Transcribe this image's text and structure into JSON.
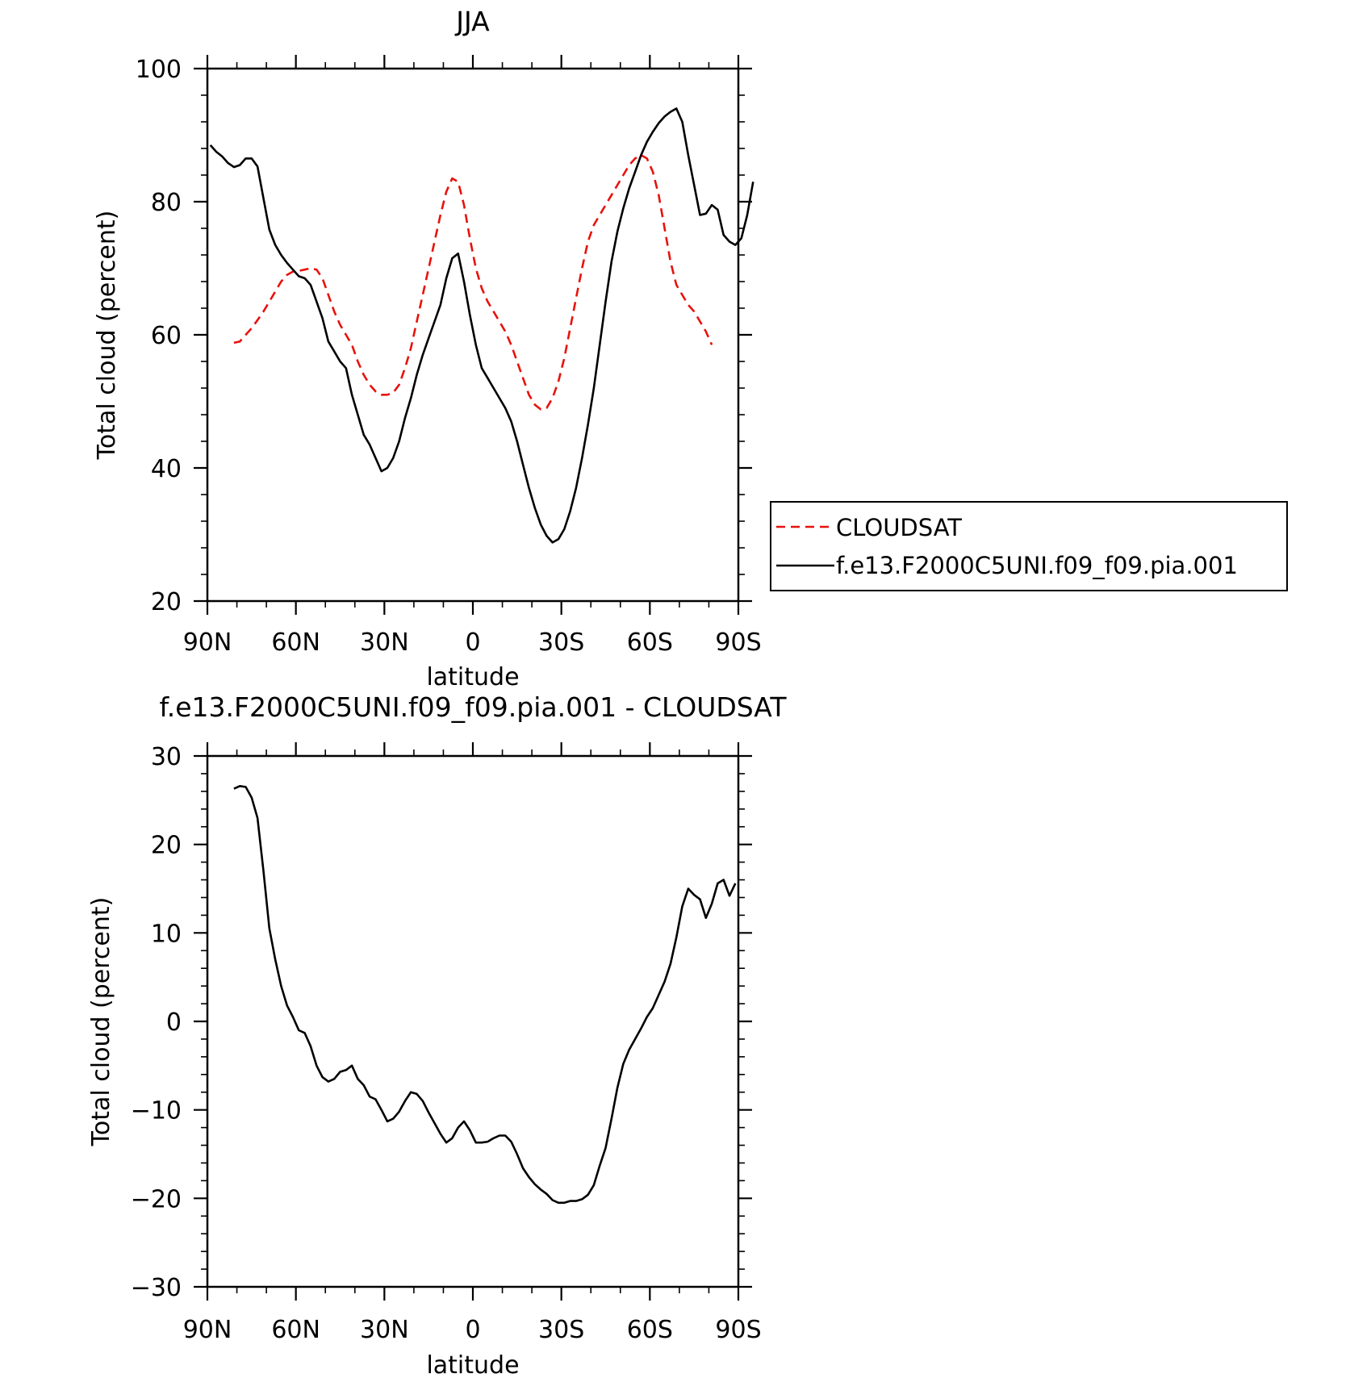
{
  "chart_data": [
    {
      "type": "line",
      "title": "JJA",
      "xlabel": "latitude",
      "ylabel": "Total cloud (percent)",
      "xlim": [
        90,
        -90
      ],
      "ylim": [
        20,
        100
      ],
      "x_ticks": [
        90,
        60,
        30,
        0,
        -30,
        -60,
        -90
      ],
      "x_tick_labels": [
        "90N",
        "60N",
        "30N",
        "0",
        "30S",
        "60S",
        "90S"
      ],
      "y_ticks": [
        20,
        40,
        60,
        80,
        100
      ],
      "y_tick_labels": [
        "20",
        "40",
        "60",
        "80",
        "100"
      ],
      "legend_position": "right",
      "series": [
        {
          "name": "CLOUDSAT",
          "color": "#e8120c",
          "style": "dashed",
          "points": [
            [
              81,
              58.8
            ],
            [
              79,
              59.0
            ],
            [
              77,
              60.0
            ],
            [
              75,
              61.0
            ],
            [
              73,
              62.2
            ],
            [
              71,
              63.5
            ],
            [
              69,
              65.0
            ],
            [
              67,
              66.5
            ],
            [
              65,
              68.0
            ],
            [
              63,
              69.0
            ],
            [
              61,
              69.5
            ],
            [
              59,
              69.6
            ],
            [
              57,
              69.8
            ],
            [
              55,
              70.0
            ],
            [
              53,
              69.8
            ],
            [
              51,
              68.5
            ],
            [
              49,
              66.0
            ],
            [
              47,
              63.5
            ],
            [
              45,
              61.5
            ],
            [
              43,
              60.0
            ],
            [
              41,
              58.5
            ],
            [
              39,
              56.0
            ],
            [
              37,
              54.0
            ],
            [
              35,
              52.5
            ],
            [
              33,
              51.5
            ],
            [
              31,
              51.0
            ],
            [
              29,
              51.0
            ],
            [
              27,
              51.3
            ],
            [
              25,
              52.5
            ],
            [
              23,
              55.0
            ],
            [
              21,
              58.0
            ],
            [
              19,
              62.0
            ],
            [
              17,
              66.0
            ],
            [
              15,
              70.0
            ],
            [
              13,
              74.0
            ],
            [
              11,
              78.0
            ],
            [
              9,
              81.5
            ],
            [
              7,
              83.5
            ],
            [
              5,
              83.0
            ],
            [
              3,
              79.5
            ],
            [
              1,
              74.5
            ],
            [
              -1,
              70.0
            ],
            [
              -3,
              67.0
            ],
            [
              -5,
              65.0
            ],
            [
              -7,
              63.5
            ],
            [
              -9,
              62.0
            ],
            [
              -11,
              60.5
            ],
            [
              -13,
              58.5
            ],
            [
              -15,
              56.0
            ],
            [
              -17,
              53.5
            ],
            [
              -19,
              51.0
            ],
            [
              -21,
              49.5
            ],
            [
              -23,
              48.8
            ],
            [
              -25,
              49.0
            ],
            [
              -27,
              50.5
            ],
            [
              -29,
              53.0
            ],
            [
              -31,
              56.5
            ],
            [
              -33,
              61.0
            ],
            [
              -35,
              65.5
            ],
            [
              -37,
              70.0
            ],
            [
              -39,
              74.0
            ],
            [
              -41,
              76.5
            ],
            [
              -43,
              78.0
            ],
            [
              -45,
              79.5
            ],
            [
              -47,
              81.0
            ],
            [
              -49,
              82.5
            ],
            [
              -51,
              84.0
            ],
            [
              -53,
              85.5
            ],
            [
              -55,
              86.5
            ],
            [
              -57,
              87.0
            ],
            [
              -59,
              86.5
            ],
            [
              -61,
              84.5
            ],
            [
              -63,
              81.0
            ],
            [
              -65,
              76.0
            ],
            [
              -67,
              71.0
            ],
            [
              -69,
              67.5
            ],
            [
              -71,
              66.0
            ],
            [
              -73,
              64.5
            ],
            [
              -75,
              63.5
            ],
            [
              -77,
              62.0
            ],
            [
              -79,
              60.5
            ],
            [
              -81,
              58.5
            ]
          ]
        },
        {
          "name": "f.e13.F2000C5UNI.f09_f09.pia.001",
          "color": "#000000",
          "style": "solid",
          "points": [
            [
              89,
              88.5
            ],
            [
              87,
              87.5
            ],
            [
              85,
              86.8
            ],
            [
              83,
              85.8
            ],
            [
              81,
              85.2
            ],
            [
              79,
              85.5
            ],
            [
              77,
              86.5
            ],
            [
              75,
              86.5
            ],
            [
              73,
              85.3
            ],
            [
              71,
              80.5
            ],
            [
              69,
              75.8
            ],
            [
              67,
              73.5
            ],
            [
              65,
              72.0
            ],
            [
              63,
              70.8
            ],
            [
              61,
              69.8
            ],
            [
              59,
              68.8
            ],
            [
              57,
              68.5
            ],
            [
              55,
              67.5
            ],
            [
              53,
              65.0
            ],
            [
              51,
              62.5
            ],
            [
              49,
              59.0
            ],
            [
              47,
              57.5
            ],
            [
              45,
              56.0
            ],
            [
              43,
              55.0
            ],
            [
              41,
              51.0
            ],
            [
              39,
              48.0
            ],
            [
              37,
              45.0
            ],
            [
              35,
              43.5
            ],
            [
              33,
              41.5
            ],
            [
              31,
              39.5
            ],
            [
              29,
              40.0
            ],
            [
              27,
              41.5
            ],
            [
              25,
              44.0
            ],
            [
              23,
              47.5
            ],
            [
              21,
              50.5
            ],
            [
              19,
              54.0
            ],
            [
              17,
              57.0
            ],
            [
              15,
              59.5
            ],
            [
              13,
              62.0
            ],
            [
              11,
              64.5
            ],
            [
              9,
              68.5
            ],
            [
              7,
              71.5
            ],
            [
              5,
              72.2
            ],
            [
              3,
              68.0
            ],
            [
              1,
              63.0
            ],
            [
              -1,
              58.5
            ],
            [
              -3,
              55.0
            ],
            [
              -5,
              53.5
            ],
            [
              -7,
              52.0
            ],
            [
              -9,
              50.5
            ],
            [
              -11,
              49.0
            ],
            [
              -13,
              47.0
            ],
            [
              -15,
              44.0
            ],
            [
              -17,
              40.5
            ],
            [
              -19,
              37.0
            ],
            [
              -21,
              34.0
            ],
            [
              -23,
              31.5
            ],
            [
              -25,
              29.8
            ],
            [
              -27,
              28.8
            ],
            [
              -29,
              29.3
            ],
            [
              -31,
              30.8
            ],
            [
              -33,
              33.5
            ],
            [
              -35,
              37.0
            ],
            [
              -37,
              41.5
            ],
            [
              -39,
              46.5
            ],
            [
              -41,
              52.0
            ],
            [
              -43,
              58.5
            ],
            [
              -45,
              65.0
            ],
            [
              -47,
              71.0
            ],
            [
              -49,
              75.5
            ],
            [
              -51,
              79.0
            ],
            [
              -53,
              82.0
            ],
            [
              -55,
              84.5
            ],
            [
              -57,
              87.0
            ],
            [
              -59,
              89.0
            ],
            [
              -61,
              90.5
            ],
            [
              -63,
              91.8
            ],
            [
              -65,
              92.8
            ],
            [
              -67,
              93.5
            ],
            [
              -69,
              94.0
            ],
            [
              -71,
              92.0
            ],
            [
              -73,
              87.0
            ],
            [
              -75,
              82.5
            ],
            [
              -77,
              78.0
            ],
            [
              -79,
              78.2
            ],
            [
              -81,
              79.5
            ],
            [
              -83,
              78.8
            ],
            [
              -85,
              75.0
            ],
            [
              -87,
              74.0
            ],
            [
              -89,
              73.5
            ],
            [
              -91,
              74.5
            ],
            [
              -93,
              78.0
            ],
            [
              -95,
              83.0
            ]
          ]
        }
      ]
    },
    {
      "type": "line",
      "title": "f.e13.F2000C5UNI.f09_f09.pia.001 - CLOUDSAT",
      "xlabel": "latitude",
      "ylabel": "Total cloud (percent)",
      "xlim": [
        90,
        -90
      ],
      "ylim": [
        -30,
        30
      ],
      "x_ticks": [
        90,
        60,
        30,
        0,
        -30,
        -60,
        -90
      ],
      "x_tick_labels": [
        "90N",
        "60N",
        "30N",
        "0",
        "30S",
        "60S",
        "90S"
      ],
      "y_ticks": [
        -30,
        -20,
        -10,
        0,
        10,
        20,
        30
      ],
      "y_tick_labels": [
        "−30",
        "−20",
        "−10",
        "0",
        "10",
        "20",
        "30"
      ],
      "series": [
        {
          "color": "#000000",
          "style": "solid",
          "points": [
            [
              81,
              26.3
            ],
            [
              79,
              26.6
            ],
            [
              77,
              26.5
            ],
            [
              75,
              25.3
            ],
            [
              73,
              23.0
            ],
            [
              71,
              17.0
            ],
            [
              69,
              10.5
            ],
            [
              67,
              7.0
            ],
            [
              65,
              4.0
            ],
            [
              63,
              1.8
            ],
            [
              61,
              0.5
            ],
            [
              59,
              -1.0
            ],
            [
              57,
              -1.3
            ],
            [
              55,
              -2.8
            ],
            [
              53,
              -5.0
            ],
            [
              51,
              -6.3
            ],
            [
              49,
              -6.8
            ],
            [
              47,
              -6.5
            ],
            [
              45,
              -5.7
            ],
            [
              43,
              -5.5
            ],
            [
              41,
              -5.0
            ],
            [
              39,
              -6.5
            ],
            [
              37,
              -7.2
            ],
            [
              35,
              -8.5
            ],
            [
              33,
              -8.8
            ],
            [
              31,
              -10.0
            ],
            [
              29,
              -11.3
            ],
            [
              27,
              -11.0
            ],
            [
              25,
              -10.2
            ],
            [
              23,
              -9.0
            ],
            [
              21,
              -8.0
            ],
            [
              19,
              -8.2
            ],
            [
              17,
              -9.0
            ],
            [
              15,
              -10.3
            ],
            [
              13,
              -11.5
            ],
            [
              11,
              -12.7
            ],
            [
              9,
              -13.7
            ],
            [
              7,
              -13.2
            ],
            [
              5,
              -12.0
            ],
            [
              3,
              -11.3
            ],
            [
              1,
              -12.3
            ],
            [
              -1,
              -13.7
            ],
            [
              -3,
              -13.7
            ],
            [
              -5,
              -13.6
            ],
            [
              -7,
              -13.2
            ],
            [
              -9,
              -12.9
            ],
            [
              -11,
              -12.9
            ],
            [
              -13,
              -13.6
            ],
            [
              -15,
              -15.0
            ],
            [
              -17,
              -16.6
            ],
            [
              -19,
              -17.6
            ],
            [
              -21,
              -18.4
            ],
            [
              -23,
              -19.0
            ],
            [
              -25,
              -19.5
            ],
            [
              -27,
              -20.2
            ],
            [
              -29,
              -20.5
            ],
            [
              -31,
              -20.5
            ],
            [
              -33,
              -20.3
            ],
            [
              -35,
              -20.3
            ],
            [
              -37,
              -20.1
            ],
            [
              -39,
              -19.6
            ],
            [
              -41,
              -18.5
            ],
            [
              -43,
              -16.3
            ],
            [
              -45,
              -14.3
            ],
            [
              -47,
              -11.0
            ],
            [
              -49,
              -7.5
            ],
            [
              -51,
              -4.8
            ],
            [
              -53,
              -3.2
            ],
            [
              -55,
              -2.0
            ],
            [
              -57,
              -0.8
            ],
            [
              -59,
              0.5
            ],
            [
              -61,
              1.5
            ],
            [
              -63,
              3.0
            ],
            [
              -65,
              4.5
            ],
            [
              -67,
              6.5
            ],
            [
              -69,
              9.5
            ],
            [
              -71,
              13.0
            ],
            [
              -73,
              15.0
            ],
            [
              -75,
              14.3
            ],
            [
              -77,
              13.8
            ],
            [
              -79,
              11.7
            ],
            [
              -81,
              13.3
            ],
            [
              -83,
              15.6
            ],
            [
              -85,
              16.0
            ],
            [
              -87,
              14.2
            ],
            [
              -89,
              15.6
            ]
          ]
        }
      ]
    }
  ]
}
